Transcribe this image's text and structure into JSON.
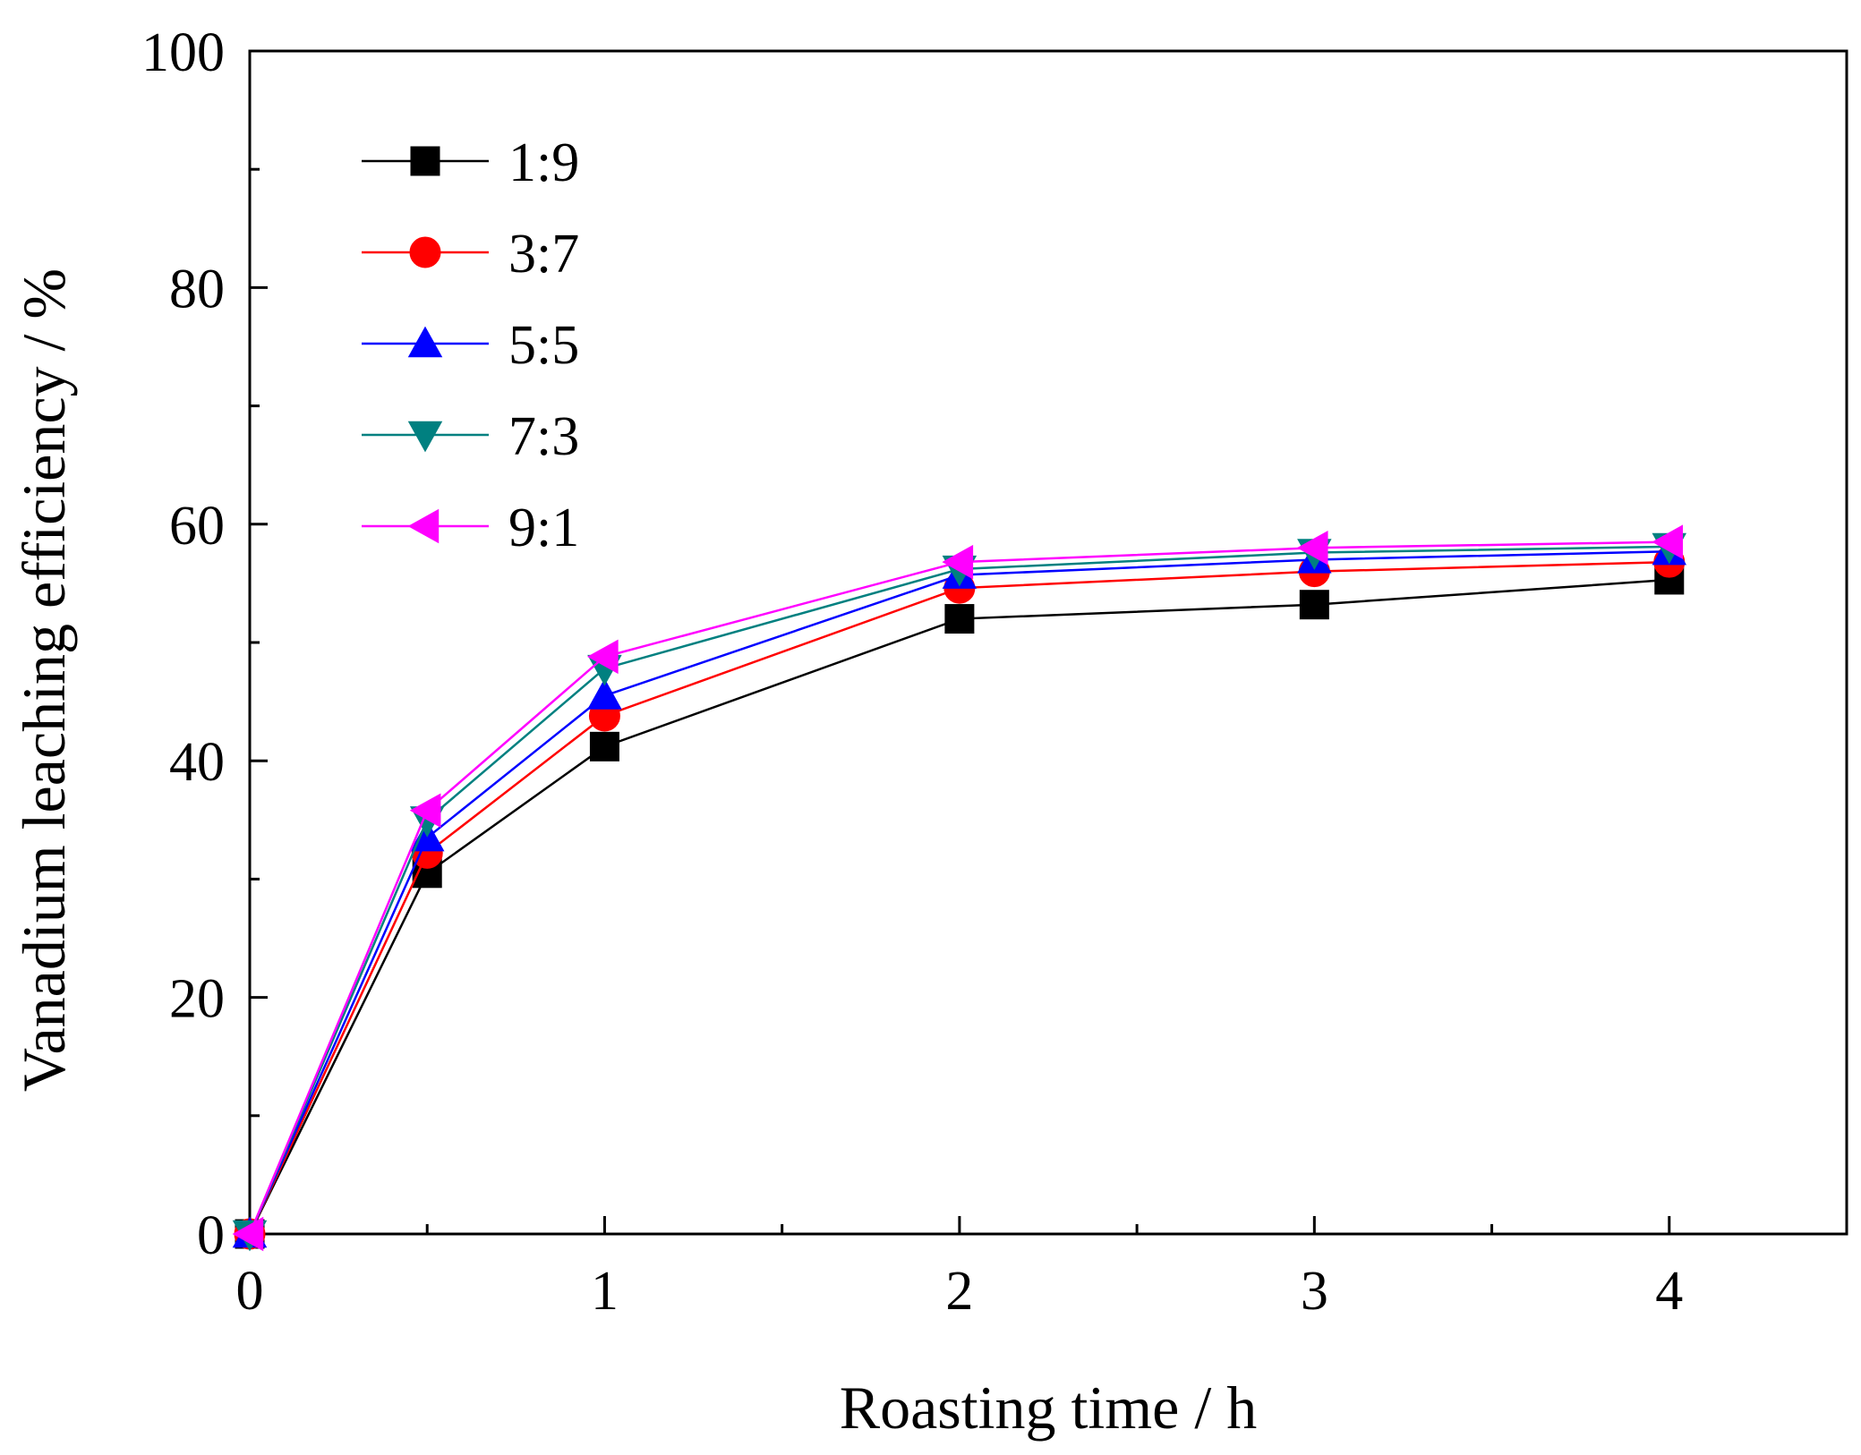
{
  "chart_data": {
    "type": "line",
    "title": "",
    "xlabel": "Roasting time / h",
    "ylabel": "Vanadium leaching efficiency / %",
    "xlim": [
      0,
      4.5
    ],
    "ylim": [
      0,
      100
    ],
    "x_ticks": [
      0,
      1,
      2,
      3,
      4
    ],
    "x_tick_labels": [
      "0",
      "1",
      "2",
      "3",
      "4"
    ],
    "y_ticks": [
      0,
      20,
      40,
      60,
      80,
      100
    ],
    "y_tick_labels": [
      "0",
      "20",
      "40",
      "60",
      "80",
      "100"
    ],
    "grid": false,
    "legend_position": "top-left",
    "x": [
      0,
      0.5,
      1,
      2,
      3,
      4
    ],
    "series": [
      {
        "name": "1:9",
        "color": "#000000",
        "marker": "square",
        "values": [
          0,
          30.5,
          41.2,
          52.0,
          53.2,
          55.3
        ]
      },
      {
        "name": "3:7",
        "color": "#ff0000",
        "marker": "circle",
        "values": [
          0,
          32.2,
          43.8,
          54.6,
          56.0,
          56.8
        ]
      },
      {
        "name": "5:5",
        "color": "#0000ff",
        "marker": "triangle-up",
        "values": [
          0,
          33.5,
          45.5,
          55.7,
          57.0,
          57.7
        ]
      },
      {
        "name": "7:3",
        "color": "#008080",
        "marker": "triangle-down",
        "values": [
          0,
          35.0,
          47.8,
          56.2,
          57.6,
          58.1
        ]
      },
      {
        "name": "9:1",
        "color": "#ff00ff",
        "marker": "triangle-left",
        "values": [
          0,
          35.8,
          48.8,
          56.8,
          58.0,
          58.5
        ]
      }
    ]
  }
}
